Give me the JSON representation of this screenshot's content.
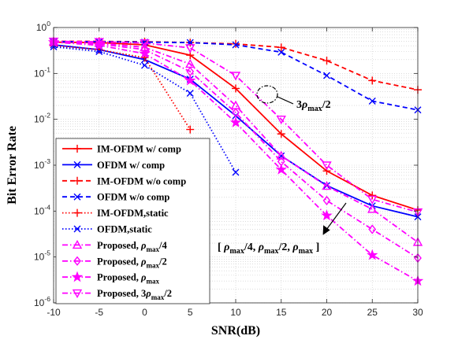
{
  "chart_data": {
    "type": "line",
    "title": "",
    "xlabel": "SNR(dB)",
    "ylabel": "Bit Error Rate",
    "xlim": [
      -10,
      30
    ],
    "ylim": [
      1e-06,
      1
    ],
    "yscale": "log",
    "grid": true,
    "legend_placement": "left",
    "xticks": [
      "-10",
      "-5",
      "0",
      "5",
      "10",
      "15",
      "20",
      "25",
      "30"
    ],
    "yticks": [
      {
        "base": "10",
        "exp": "0"
      },
      {
        "base": "10",
        "exp": "-1"
      },
      {
        "base": "10",
        "exp": "-2"
      },
      {
        "base": "10",
        "exp": "-3"
      },
      {
        "base": "10",
        "exp": "-4"
      },
      {
        "base": "10",
        "exp": "-5"
      },
      {
        "base": "10",
        "exp": "-6"
      }
    ],
    "series": [
      {
        "name": "IM-OFDM w/ comp",
        "color": "#ff0000",
        "dash": "solid",
        "marker": "plus",
        "x": [
          -10,
          -5,
          0,
          5,
          10,
          15,
          20,
          25,
          30
        ],
        "y": [
          0.48,
          0.47,
          0.42,
          0.25,
          0.047,
          0.0048,
          0.00075,
          0.00022,
          0.000105
        ]
      },
      {
        "name": "OFDM w/ comp",
        "color": "#0000ff",
        "dash": "solid",
        "marker": "x",
        "x": [
          -10,
          -5,
          0,
          5,
          10,
          15,
          20,
          25,
          30
        ],
        "y": [
          0.42,
          0.33,
          0.2,
          0.075,
          0.012,
          0.0016,
          0.00036,
          0.00013,
          7.5e-05
        ]
      },
      {
        "name": "IM-OFDM w/o comp",
        "color": "#ff0000",
        "dash": "dashed",
        "marker": "plus",
        "x": [
          -10,
          -5,
          0,
          5,
          10,
          15,
          20,
          25,
          30
        ],
        "y": [
          0.5,
          0.5,
          0.49,
          0.47,
          0.44,
          0.37,
          0.19,
          0.07,
          0.044
        ]
      },
      {
        "name": "OFDM w/o comp",
        "color": "#0000ff",
        "dash": "dashed",
        "marker": "x",
        "x": [
          -10,
          -5,
          0,
          5,
          10,
          15,
          20,
          25,
          30
        ],
        "y": [
          0.49,
          0.49,
          0.48,
          0.47,
          0.42,
          0.29,
          0.09,
          0.025,
          0.016
        ]
      },
      {
        "name": "IM-OFDM,static",
        "color": "#ff0000",
        "dash": "dotted",
        "marker": "plus",
        "x": [
          -10,
          -5,
          0,
          5
        ],
        "y": [
          0.4,
          0.33,
          0.22,
          0.006
        ]
      },
      {
        "name": "OFDM,static",
        "color": "#0000ff",
        "dash": "dotted",
        "marker": "x",
        "x": [
          -10,
          -5,
          0,
          5,
          10
        ],
        "y": [
          0.38,
          0.3,
          0.15,
          0.037,
          0.0007
        ]
      },
      {
        "name": "Proposed, ρ_max/4",
        "color": "#ff00ff",
        "dash": "dashdot",
        "marker": "triangle-up",
        "x": [
          -10,
          -5,
          0,
          5,
          10,
          15,
          20,
          25,
          30
        ],
        "y": [
          0.49,
          0.46,
          0.37,
          0.16,
          0.02,
          0.0016,
          0.00035,
          0.00011,
          2.1e-05
        ]
      },
      {
        "name": "Proposed, ρ_max/2",
        "color": "#ff00ff",
        "dash": "dashdot",
        "marker": "diamond",
        "x": [
          -10,
          -5,
          0,
          5,
          10,
          15,
          20,
          25,
          30
        ],
        "y": [
          0.49,
          0.44,
          0.33,
          0.11,
          0.014,
          0.0012,
          0.00017,
          4e-05,
          9.5e-06
        ]
      },
      {
        "name": "Proposed, ρ_max",
        "color": "#ff00ff",
        "dash": "dashdot",
        "marker": "star",
        "x": [
          -10,
          -5,
          0,
          5,
          10,
          15,
          20,
          25,
          30
        ],
        "y": [
          0.48,
          0.41,
          0.27,
          0.07,
          0.0085,
          0.0008,
          8e-05,
          1.1e-05,
          3e-06
        ]
      },
      {
        "name": "Proposed, 3ρ_max/2",
        "color": "#ff00ff",
        "dash": "dashdot",
        "marker": "triangle-down",
        "x": [
          -10,
          -5,
          0,
          5,
          10,
          15,
          20,
          25,
          30
        ],
        "y": [
          0.5,
          0.49,
          0.46,
          0.36,
          0.09,
          0.01,
          0.001,
          0.00018,
          9.5e-05
        ]
      }
    ],
    "legend_labels": [
      [
        {
          "t": "IM-OFDM w/ comp"
        }
      ],
      [
        {
          "t": "OFDM w/ comp"
        }
      ],
      [
        {
          "t": "IM-OFDM w/o comp"
        }
      ],
      [
        {
          "t": "OFDM w/o comp"
        }
      ],
      [
        {
          "t": "IM-OFDM,static"
        }
      ],
      [
        {
          "t": "OFDM,static"
        }
      ],
      [
        {
          "t": "Proposed, "
        },
        {
          "t": "ρ",
          "style": "italic"
        },
        {
          "t": "max",
          "style": "sub"
        },
        {
          "t": "/4"
        }
      ],
      [
        {
          "t": "Proposed, "
        },
        {
          "t": "ρ",
          "style": "italic"
        },
        {
          "t": "max",
          "style": "sub"
        },
        {
          "t": "/2"
        }
      ],
      [
        {
          "t": "Proposed, "
        },
        {
          "t": "ρ",
          "style": "italic"
        },
        {
          "t": "max",
          "style": "sub"
        }
      ],
      [
        {
          "t": "Proposed, 3"
        },
        {
          "t": "ρ",
          "style": "italic"
        },
        {
          "t": "max",
          "style": "sub"
        },
        {
          "t": "/2"
        }
      ]
    ],
    "annotations": [
      {
        "name": "annotation-3rho-max-2",
        "parts": [
          {
            "t": "3"
          },
          {
            "t": "ρ",
            "style": "italic"
          },
          {
            "t": "max",
            "style": "sub"
          },
          {
            "t": "/2"
          }
        ]
      },
      {
        "name": "annotation-bracket-group",
        "parts": [
          {
            "t": "[ "
          },
          {
            "t": "ρ",
            "style": "italic"
          },
          {
            "t": "max",
            "style": "sub"
          },
          {
            "t": "/4, "
          },
          {
            "t": "ρ",
            "style": "italic"
          },
          {
            "t": "max",
            "style": "sub"
          },
          {
            "t": "/2, "
          },
          {
            "t": "ρ",
            "style": "italic"
          },
          {
            "t": "max",
            "style": "sub"
          },
          {
            "t": " ]"
          }
        ]
      }
    ]
  }
}
